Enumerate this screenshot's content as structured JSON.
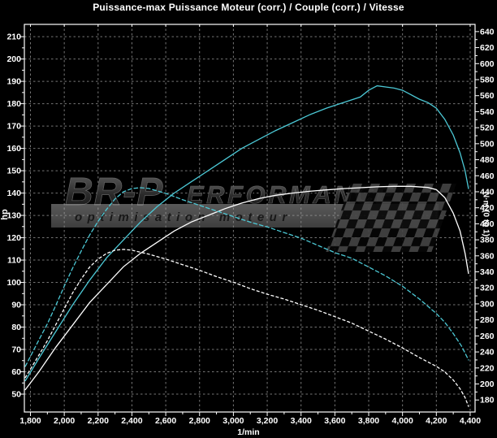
{
  "window": {
    "title": "Puissance-max Puissance Moteur (corr.) / Couple (corr.) / Vitesse"
  },
  "watermark": {
    "brand_large": "BR-P",
    "brand_small": "ERFORMANCE",
    "tagline": "optimisation moteur"
  },
  "colors": {
    "background": "#000000",
    "frame": "#ffffff",
    "grid": "#767676",
    "curve_cyan": "#4cc9d6",
    "curve_white": "#ffffff",
    "watermark_band": "#8f8f8f",
    "watermark_text": "#161616"
  },
  "chart_data": {
    "type": "line",
    "title": "Puissance-max Puissance Moteur (corr.) / Couple (corr.) / Vitesse",
    "grid": "dashed, on every major x (200 1/min) and left-axis (10 hp) division",
    "legend_position": "none",
    "x_axis": {
      "label": "1/min",
      "range": [
        1764,
        4429
      ],
      "tick_values": [
        1800,
        2000,
        2200,
        2400,
        2600,
        2800,
        3000,
        3200,
        3400,
        3600,
        3800,
        4000,
        4200,
        4400
      ],
      "tick_labels": [
        "1,800",
        "2,000",
        "2,200",
        "2,400",
        "2,600",
        "2,800",
        "3,000",
        "3,200",
        "3,400",
        "3,600",
        "3,800",
        "4,000",
        "4,200",
        "4,400"
      ],
      "minor_tick_step": 100
    },
    "y_left": {
      "label": "hp",
      "range": [
        42,
        215.5
      ],
      "tick_values": [
        210,
        200,
        190,
        180,
        170,
        160,
        150,
        140,
        130,
        120,
        110,
        100,
        90,
        80,
        70,
        60,
        50
      ],
      "minor_tick_step": 5
    },
    "y_right": {
      "label": "N·m  (0 to 1)",
      "range": [
        165,
        649
      ],
      "tick_values": [
        640,
        620,
        600,
        580,
        560,
        540,
        520,
        500,
        480,
        460,
        440,
        420,
        400,
        380,
        360,
        340,
        320,
        300,
        280,
        260,
        240,
        220,
        200,
        180
      ],
      "minor_tick_step": 10
    },
    "series": [
      {
        "id": "puissance-haute-cyan-solid",
        "quantity": "Puissance Moteur (corr.)",
        "axis": "left",
        "unit": "hp",
        "color": "#4cc9d6",
        "line_style": "solid",
        "max": {
          "value": 188,
          "at_rpm": 3850
        },
        "points": [
          [
            1770,
            56
          ],
          [
            1850,
            66
          ],
          [
            1950,
            78
          ],
          [
            2050,
            90
          ],
          [
            2150,
            101
          ],
          [
            2250,
            111
          ],
          [
            2350,
            119
          ],
          [
            2450,
            127
          ],
          [
            2550,
            134
          ],
          [
            2650,
            140
          ],
          [
            2750,
            145
          ],
          [
            2850,
            150
          ],
          [
            2950,
            155
          ],
          [
            3050,
            160
          ],
          [
            3150,
            164
          ],
          [
            3250,
            168
          ],
          [
            3350,
            171.5
          ],
          [
            3450,
            175
          ],
          [
            3550,
            178
          ],
          [
            3650,
            180.5
          ],
          [
            3750,
            183
          ],
          [
            3800,
            186
          ],
          [
            3850,
            188
          ],
          [
            3900,
            187.5
          ],
          [
            3950,
            187
          ],
          [
            4000,
            186
          ],
          [
            4050,
            184
          ],
          [
            4100,
            182
          ],
          [
            4150,
            180.5
          ],
          [
            4200,
            178
          ],
          [
            4250,
            173
          ],
          [
            4300,
            166
          ],
          [
            4340,
            158
          ],
          [
            4370,
            150
          ],
          [
            4390,
            142
          ]
        ]
      },
      {
        "id": "puissance-basse-blanc-solid",
        "quantity": "Puissance Moteur (corr.)",
        "axis": "left",
        "unit": "hp",
        "color": "#ffffff",
        "line_style": "solid",
        "max": {
          "value": 143,
          "at_rpm": 3950
        },
        "points": [
          [
            1770,
            52
          ],
          [
            1850,
            60
          ],
          [
            1950,
            71
          ],
          [
            2050,
            81
          ],
          [
            2150,
            91
          ],
          [
            2250,
            99
          ],
          [
            2350,
            107
          ],
          [
            2450,
            113
          ],
          [
            2550,
            118
          ],
          [
            2650,
            123
          ],
          [
            2750,
            127
          ],
          [
            2850,
            130
          ],
          [
            2950,
            133
          ],
          [
            3050,
            135.5
          ],
          [
            3150,
            137.5
          ],
          [
            3250,
            139
          ],
          [
            3350,
            140
          ],
          [
            3450,
            140.8
          ],
          [
            3550,
            141.4
          ],
          [
            3650,
            142
          ],
          [
            3750,
            142.4
          ],
          [
            3850,
            142.8
          ],
          [
            3950,
            143
          ],
          [
            4050,
            143
          ],
          [
            4150,
            142.5
          ],
          [
            4200,
            141.5
          ],
          [
            4250,
            138
          ],
          [
            4300,
            131
          ],
          [
            4340,
            123
          ],
          [
            4370,
            113
          ],
          [
            4390,
            104
          ]
        ]
      },
      {
        "id": "couple-haut-cyan-dashed",
        "quantity": "Couple (corr.)",
        "axis": "right",
        "unit": "N·m",
        "color": "#4cc9d6",
        "line_style": "dashed",
        "max": {
          "value": 445,
          "at_rpm": 2450
        },
        "points": [
          [
            1770,
            222
          ],
          [
            1850,
            255
          ],
          [
            1900,
            275
          ],
          [
            1950,
            298
          ],
          [
            2000,
            322
          ],
          [
            2050,
            345
          ],
          [
            2100,
            366
          ],
          [
            2150,
            386
          ],
          [
            2200,
            403
          ],
          [
            2250,
            418
          ],
          [
            2300,
            431
          ],
          [
            2350,
            440
          ],
          [
            2400,
            444
          ],
          [
            2450,
            445
          ],
          [
            2500,
            444
          ],
          [
            2600,
            438
          ],
          [
            2700,
            430
          ],
          [
            2800,
            423
          ],
          [
            2900,
            416
          ],
          [
            3000,
            409
          ],
          [
            3100,
            402
          ],
          [
            3200,
            396
          ],
          [
            3300,
            389
          ],
          [
            3400,
            382
          ],
          [
            3500,
            373
          ],
          [
            3600,
            364
          ],
          [
            3700,
            357
          ],
          [
            3800,
            346
          ],
          [
            3900,
            335
          ],
          [
            4000,
            322
          ],
          [
            4100,
            306
          ],
          [
            4200,
            288
          ],
          [
            4250,
            277
          ],
          [
            4300,
            263
          ],
          [
            4350,
            247
          ],
          [
            4390,
            230
          ]
        ]
      },
      {
        "id": "couple-bas-blanc-dashed",
        "quantity": "Couple (corr.)",
        "axis": "right",
        "unit": "N·m",
        "color": "#ffffff",
        "line_style": "dashed",
        "max": {
          "value": 368,
          "at_rpm": 2350
        },
        "points": [
          [
            1770,
            208
          ],
          [
            1850,
            236
          ],
          [
            1900,
            254
          ],
          [
            1950,
            274
          ],
          [
            2000,
            294
          ],
          [
            2050,
            314
          ],
          [
            2100,
            331
          ],
          [
            2150,
            346
          ],
          [
            2200,
            356
          ],
          [
            2250,
            363
          ],
          [
            2300,
            367
          ],
          [
            2350,
            368
          ],
          [
            2400,
            367
          ],
          [
            2500,
            362
          ],
          [
            2600,
            356
          ],
          [
            2700,
            349
          ],
          [
            2800,
            342
          ],
          [
            2900,
            334
          ],
          [
            3000,
            327
          ],
          [
            3100,
            319
          ],
          [
            3200,
            312
          ],
          [
            3300,
            306
          ],
          [
            3400,
            299
          ],
          [
            3500,
            292
          ],
          [
            3600,
            284
          ],
          [
            3700,
            276
          ],
          [
            3800,
            266
          ],
          [
            3900,
            256
          ],
          [
            4000,
            245
          ],
          [
            4100,
            233
          ],
          [
            4200,
            222
          ],
          [
            4250,
            215
          ],
          [
            4300,
            205
          ],
          [
            4340,
            194
          ],
          [
            4370,
            183
          ],
          [
            4390,
            172
          ]
        ]
      }
    ]
  }
}
